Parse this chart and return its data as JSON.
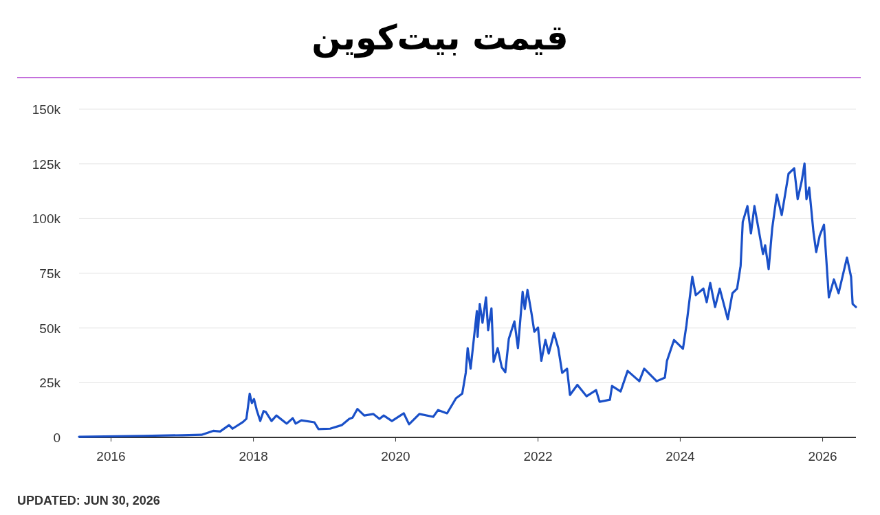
{
  "chart_data": {
    "type": "line",
    "title": "قیمت بیت‌کوین",
    "annotations": [
      "UPDATED: JUN 30, 2026"
    ],
    "xlim": [
      "2015-07-21",
      "2026-06-21"
    ],
    "xticks": [
      {
        "value": "2016-01-01",
        "label": "2016"
      },
      {
        "value": "2018-01-01",
        "label": "2018"
      },
      {
        "value": "2020-01-01",
        "label": "2020"
      },
      {
        "value": "2022-01-01",
        "label": "2022"
      },
      {
        "value": "2024-01-01",
        "label": "2024"
      },
      {
        "value": "2026-01-01",
        "label": "2026"
      }
    ],
    "ylim": [
      0,
      150000
    ],
    "yticks": [
      0,
      {
        "value": 25000,
        "label": "25k"
      },
      {
        "value": 50000,
        "label": "50k"
      },
      {
        "value": 75000,
        "label": "75k"
      },
      {
        "value": 100000,
        "label": "100k"
      },
      {
        "value": 125000,
        "label": "125k"
      },
      {
        "value": 150000,
        "label": "150k"
      }
    ],
    "grid": "y",
    "marker": "none",
    "line_style": "solid",
    "series": [
      {
        "color": "#1a50c8",
        "x": [
          "2015-07-21",
          "2016-06-15",
          "2017-01-01",
          "2017-04-10",
          "2017-06-09",
          "2017-07-14",
          "2017-08-29",
          "2017-09-16",
          "2017-11-08",
          "2017-11-26",
          "2017-12-13",
          "2017-12-24",
          "2018-01-04",
          "2018-01-18",
          "2018-02-05",
          "2018-02-22",
          "2018-03-06",
          "2018-04-04",
          "2018-04-29",
          "2018-06-21",
          "2018-07-22",
          "2018-08-06",
          "2018-09-04",
          "2018-11-10",
          "2018-12-01",
          "2019-01-30",
          "2019-03-30",
          "2019-05-08",
          "2019-05-25",
          "2019-06-19",
          "2019-07-24",
          "2019-09-09",
          "2019-10-10",
          "2019-11-01",
          "2019-12-13",
          "2020-02-12",
          "2020-03-10",
          "2020-05-02",
          "2020-07-12",
          "2020-08-06",
          "2020-09-21",
          "2020-11-06",
          "2020-12-08",
          "2020-12-26",
          "2021-01-05",
          "2021-01-20",
          "2021-02-21",
          "2021-02-25",
          "2021-03-08",
          "2021-03-22",
          "2021-04-09",
          "2021-04-20",
          "2021-05-07",
          "2021-05-18",
          "2021-06-08",
          "2021-06-29",
          "2021-07-17",
          "2021-08-04",
          "2021-09-02",
          "2021-09-20",
          "2021-10-14",
          "2021-10-25",
          "2021-11-08",
          "2021-11-29",
          "2021-12-13",
          "2022-01-01",
          "2022-01-18",
          "2022-02-08",
          "2022-02-25",
          "2022-03-24",
          "2022-04-15",
          "2022-05-05",
          "2022-05-30",
          "2022-06-14",
          "2022-07-22",
          "2022-09-07",
          "2022-10-26",
          "2022-11-13",
          "2023-01-05",
          "2023-01-16",
          "2023-03-01",
          "2023-04-06",
          "2023-06-05",
          "2023-06-30",
          "2023-09-02",
          "2023-10-14",
          "2023-10-25",
          "2023-11-30",
          "2024-01-15",
          "2024-02-02",
          "2024-03-03",
          "2024-03-21",
          "2024-04-29",
          "2024-05-16",
          "2024-06-03",
          "2024-06-28",
          "2024-07-22",
          "2024-09-01",
          "2024-09-25",
          "2024-10-19",
          "2024-11-06",
          "2024-11-17",
          "2024-12-11",
          "2024-12-29",
          "2025-01-16",
          "2025-03-01",
          "2025-03-12",
          "2025-03-30",
          "2025-04-17",
          "2025-05-11",
          "2025-06-05",
          "2025-07-10",
          "2025-08-08",
          "2025-08-26",
          "2025-09-16",
          "2025-09-30",
          "2025-10-10",
          "2025-10-24",
          "2025-11-15",
          "2025-11-29",
          "2025-12-17",
          "2026-01-08",
          "2026-02-02",
          "2026-02-28",
          "2026-03-24",
          "2026-05-06",
          "2026-05-27",
          "2026-06-04",
          "2026-06-21"
        ],
        "values": [
          300,
          700,
          1000,
          1200,
          3000,
          2700,
          5600,
          4000,
          7000,
          8500,
          20000,
          15700,
          17500,
          12500,
          7500,
          12000,
          11600,
          7500,
          10000,
          6300,
          8800,
          6300,
          7800,
          6900,
          3800,
          4000,
          5600,
          8500,
          9000,
          13000,
          10000,
          10700,
          8500,
          10000,
          7500,
          11000,
          6000,
          10700,
          9400,
          12500,
          11000,
          17900,
          20000,
          29500,
          40800,
          31400,
          57700,
          46000,
          61000,
          52400,
          64000,
          49000,
          59000,
          34500,
          40800,
          32000,
          29800,
          45000,
          53000,
          40800,
          66500,
          58700,
          67400,
          56500,
          48300,
          50200,
          35000,
          44500,
          38300,
          47700,
          40800,
          29500,
          31400,
          19400,
          24000,
          18800,
          21600,
          16300,
          17200,
          23500,
          21000,
          30400,
          25700,
          31400,
          25700,
          27300,
          35000,
          44500,
          40500,
          51400,
          73400,
          65000,
          68000,
          61800,
          70600,
          59600,
          68000,
          54000,
          65900,
          68000,
          78400,
          98500,
          105700,
          93200,
          105700,
          83800,
          87800,
          76900,
          95400,
          111000,
          101600,
          120500,
          123000,
          108900,
          117300,
          125200,
          108900,
          114200,
          93800,
          84700,
          92200,
          97200,
          64000,
          72200,
          65900,
          82200,
          73400,
          61000,
          59600
        ]
      }
    ]
  }
}
